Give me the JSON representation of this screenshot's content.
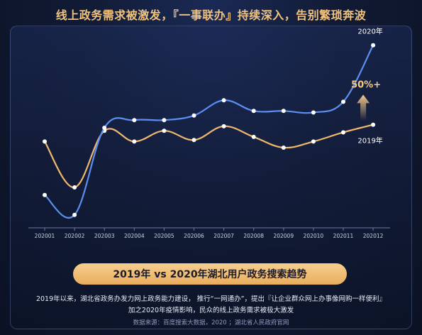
{
  "header": {
    "title": "线上政务需求被激发，『一事联办』持续深入，告别繁琐奔波"
  },
  "chart_data": {
    "type": "line",
    "categories": [
      "202001",
      "202002",
      "202003",
      "202004",
      "202005",
      "202006",
      "202007",
      "202008",
      "202009",
      "202010",
      "202011",
      "202012"
    ],
    "series": [
      {
        "name": "2020年",
        "color": "#5b8ff2",
        "values": [
          21,
          8,
          65,
          70,
          70,
          73,
          83,
          76,
          76,
          75,
          82,
          119
        ]
      },
      {
        "name": "2019年",
        "color": "#efb86c",
        "values": [
          56,
          26,
          63,
          56,
          63,
          57,
          66,
          59,
          52,
          56,
          62,
          67
        ]
      }
    ],
    "annotation": "50%+",
    "ylim": [
      0,
      130
    ],
    "grid": false
  },
  "caption": {
    "title": "2019年 vs 2020年湖北用户政务搜索趋势"
  },
  "description": {
    "line1": "2019年以来，湖北省政务办发力网上政务能力建设， 推行“一网通办”，提出『让企业群众网上办事像网购一样便利』",
    "line2": "加之2020年疫情影响，民众的线上政务需求被极大激发"
  },
  "source": "数据来源：百度搜索大数据，2020 ；湖北省人民政府官网"
}
